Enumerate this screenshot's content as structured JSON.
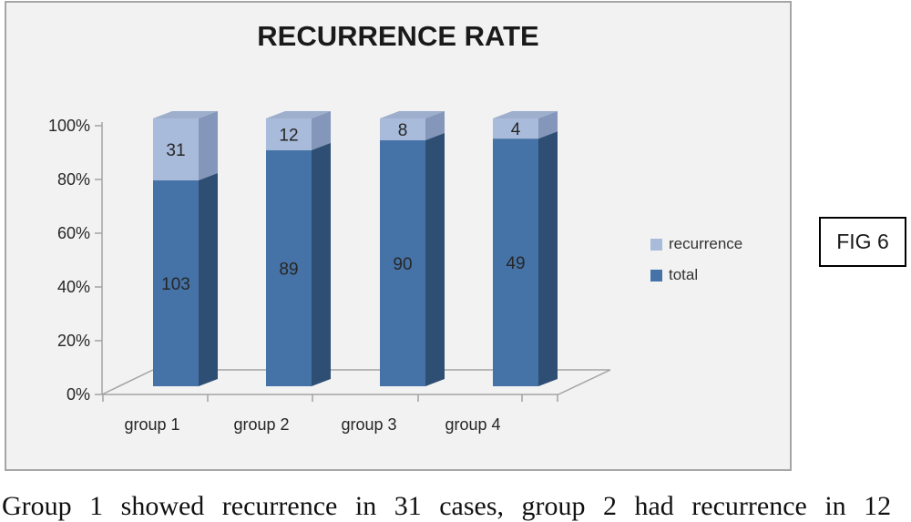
{
  "chart_data": {
    "type": "bar",
    "subtype": "100%-stacked-3d-column",
    "title": "RECURRENCE RATE",
    "categories": [
      "group 1",
      "group 2",
      "group 3",
      "group 4"
    ],
    "series": [
      {
        "name": "total",
        "values": [
          103,
          89,
          90,
          49
        ],
        "color": "#4573a7",
        "side_color": "#2e4e73"
      },
      {
        "name": "recurrence",
        "values": [
          31,
          12,
          8,
          4
        ],
        "color": "#a9bbda",
        "side_color": "#8497bb",
        "top_color": "#9dafcc"
      }
    ],
    "y_ticks": [
      "0%",
      "20%",
      "40%",
      "60%",
      "80%",
      "100%"
    ],
    "ylim": [
      0,
      100
    ],
    "grid": false,
    "legend": {
      "position": "right",
      "items": [
        "recurrence",
        "total"
      ]
    }
  },
  "figure_label": {
    "label": "FIG 6"
  },
  "caption": {
    "text": "Group 1 showed recurrence in 31 cases, group 2 had recurrence in 12"
  },
  "colors": {
    "frame_bg": "#f2f2f2",
    "frame_border": "#a6a6a6",
    "axis": "#a3a3a3",
    "label_text": "#262626",
    "fig_border": "#000000"
  }
}
